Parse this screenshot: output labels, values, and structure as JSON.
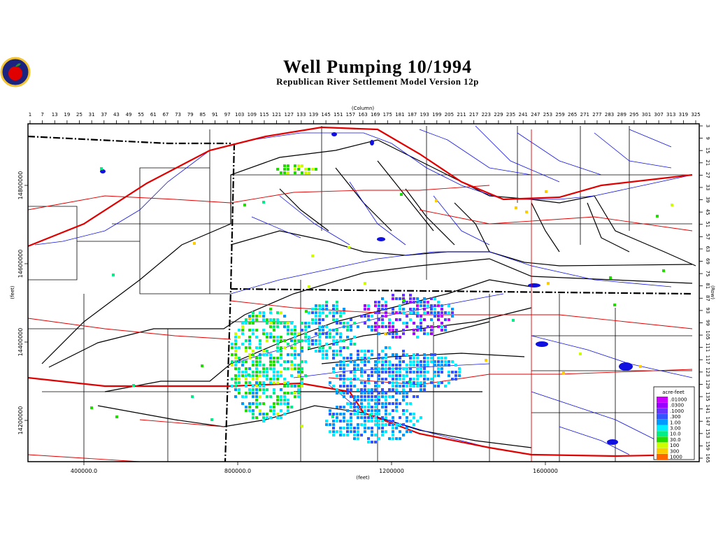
{
  "header": {
    "title": "Well Pumping 10/1994",
    "subtitle": "Republican River Settlement Model Version 12p"
  },
  "axes": {
    "column_label": "(Column)",
    "row_label": "(Row)",
    "x_label": "(feet)",
    "y_label": "(feet)",
    "column_ticks": [
      1,
      7,
      13,
      19,
      25,
      31,
      37,
      43,
      49,
      55,
      61,
      67,
      73,
      79,
      85,
      91,
      97,
      103,
      109,
      115,
      121,
      127,
      133,
      139,
      145,
      151,
      157,
      163,
      169,
      175,
      181,
      187,
      193,
      199,
      205,
      211,
      217,
      223,
      229,
      235,
      241,
      247,
      253,
      259,
      265,
      271,
      277,
      283,
      289,
      295,
      301,
      307,
      313,
      319,
      325
    ],
    "row_ticks": [
      3,
      9,
      15,
      21,
      27,
      33,
      39,
      45,
      51,
      57,
      63,
      69,
      75,
      81,
      87,
      93,
      99,
      105,
      111,
      117,
      123,
      129,
      135,
      141,
      147,
      153,
      159,
      165
    ],
    "x_ticks": [
      {
        "value": 400000,
        "label": "400000.0"
      },
      {
        "value": 800000,
        "label": "800000.0"
      },
      1200000,
      1600000
    ],
    "y_ticks": [
      14800000,
      14600000,
      14400000,
      14200000
    ]
  },
  "legend": {
    "title": "acre-feet",
    "entries": [
      {
        "value": 0.01,
        "label": ".01000",
        "color": "#cc00ff"
      },
      {
        "value": 0.03,
        "label": ".0300",
        "color": "#9900ff"
      },
      {
        "value": 0.1,
        "label": ".1000",
        "color": "#6633ff"
      },
      {
        "value": 0.3,
        "label": ".300",
        "color": "#3355ff"
      },
      {
        "value": 1,
        "label": "1.00",
        "color": "#0099ff"
      },
      {
        "value": 3,
        "label": "3.00",
        "color": "#00eeff"
      },
      {
        "value": 10,
        "label": "10.0",
        "color": "#00ee88"
      },
      {
        "value": 30,
        "label": "30.0",
        "color": "#22dd00"
      },
      {
        "value": 100,
        "label": "100",
        "color": "#ccff00"
      },
      {
        "value": 300,
        "label": "300",
        "color": "#ffcc00"
      },
      {
        "value": 1000,
        "label": "1000",
        "color": "#ff6600"
      }
    ]
  }
}
